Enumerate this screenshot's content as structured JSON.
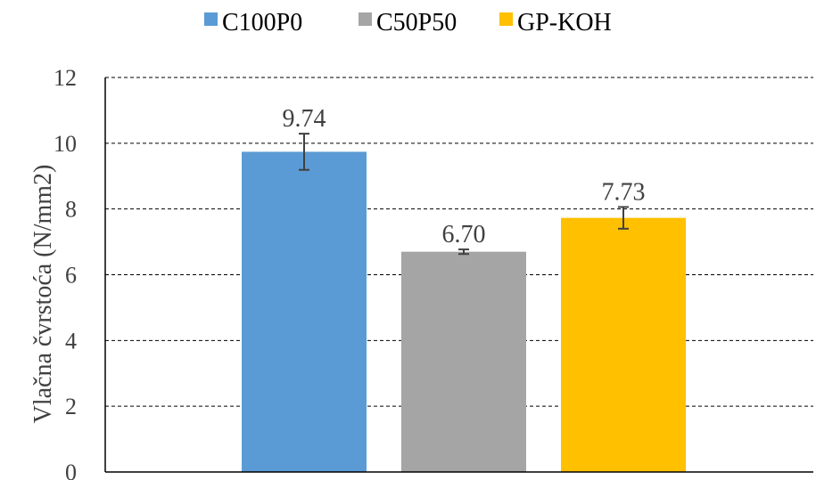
{
  "chart_data": {
    "type": "bar",
    "title": "",
    "xlabel": "",
    "ylabel": "Vlačna čvrstoća (N/mm2)",
    "ylim": [
      0,
      12
    ],
    "yticks": [
      0,
      2,
      4,
      6,
      8,
      10,
      12
    ],
    "grid": true,
    "legend_position": "top",
    "series": [
      {
        "name": "C100P0",
        "value": 9.74,
        "error": 0.55,
        "label": "9.74",
        "color": "#5b9bd5"
      },
      {
        "name": "C50P50",
        "value": 6.7,
        "error": 0.07,
        "label": "6.70",
        "color": "#a5a5a5"
      },
      {
        "name": "GP-KOH",
        "value": 7.73,
        "error": 0.33,
        "label": "7.73",
        "color": "#ffc000"
      }
    ]
  }
}
